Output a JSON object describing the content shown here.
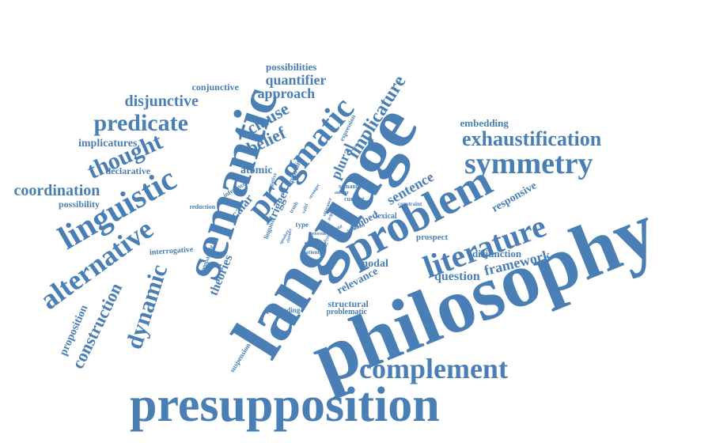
{
  "title": "",
  "color": "#4a7fb5",
  "background": "#ffffff",
  "words": {
    "philosophy": "philosophy",
    "language": "language",
    "semantic": "semantic",
    "presupposition": "presupposition",
    "problem": "problem",
    "pragmatic": "pragmatic",
    "linguistic": "linguistic",
    "literature": "literature",
    "symmetry": "symmetry",
    "alternative": "alternative",
    "complement": "complement",
    "exhaustification": "exhaustification",
    "predicate": "predicate",
    "thought": "thought",
    "implicature": "implicature",
    "dynamic": "dynamic",
    "construction": "construction",
    "coordination": "coordination",
    "disjunctive": "disjunctive",
    "belief": "belief",
    "clause": "clause",
    "approach": "approach",
    "quantifier": "quantifier",
    "sentence": "sentence",
    "framework": "framework",
    "question": "question",
    "responsive": "responsive",
    "implicatures": "implicatures",
    "theories": "theories",
    "scalar": "scalar",
    "plural": "plural",
    "embedding": "embedding",
    "relevance": "relevance",
    "proposition": "proposition",
    "modal": "modal",
    "possibilities": "possibilities",
    "conjunctive": "conjunctive",
    "declarative": "declarative",
    "possibility": "possibility",
    "atomic": "atomic",
    "trigger": "trigger",
    "interrogative": "interrogative",
    "structural": "structural",
    "problematic": "problematic",
    "disjunction": "disjunction",
    "prospect": "prospect",
    "proceeding": "proceeding",
    "suspension": "suspension",
    "embed": "embed",
    "theory": "theory",
    "reduction": "reduction",
    "compatible": "compatible",
    "inference": "inference",
    "lexical": "lexical",
    "solution": "solution",
    "constraint": "constraint",
    "current": "current",
    "semant": "semant",
    "answer": "answer",
    "expression": "expression",
    "plurality": "plurality",
    "negative": "negative",
    "linguist": "linguist",
    "type": "type",
    "attempt": "attempt",
    "denote": "denote",
    "stronger": "stronger",
    "truth": "truth",
    "utterance": "utterance",
    "valid": "valid",
    "reference": "reference",
    "closure": "closure",
    "argue": "argue",
    "analyzed": "analyzed",
    "speaker": "speaker"
  }
}
